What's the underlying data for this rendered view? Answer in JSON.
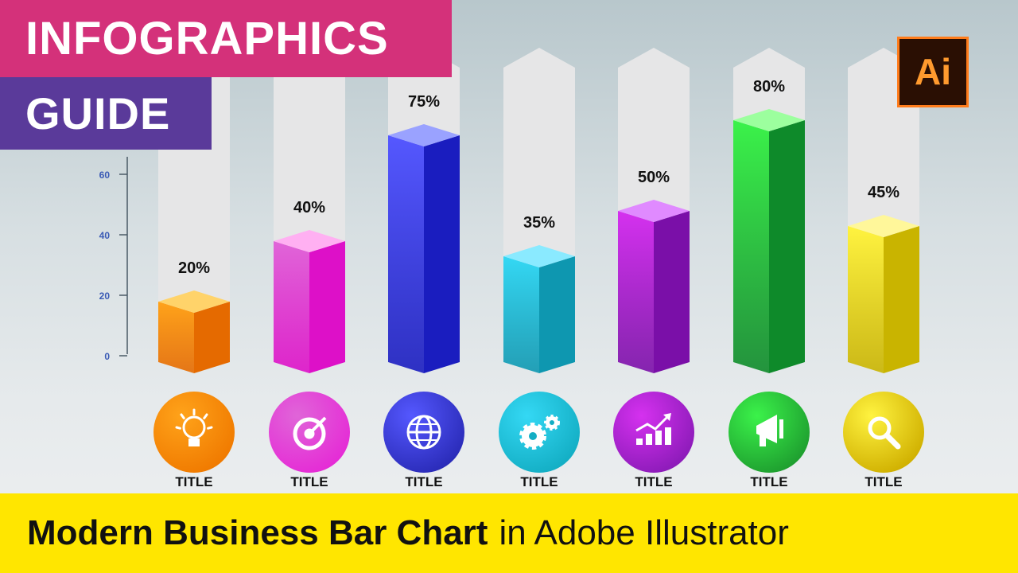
{
  "banner": {
    "line1": "INFOGRAPHICS",
    "line2": "GUIDE",
    "app_badge": "Ai"
  },
  "bottom_title": {
    "bold": "Modern Business Bar Chart",
    "rest": "in Adobe Illustrator"
  },
  "chart_data": {
    "type": "bar",
    "title": "",
    "xlabel": "",
    "ylabel": "",
    "categories": [
      "TITLE",
      "TITLE",
      "TITLE",
      "TITLE",
      "TITLE",
      "TITLE",
      "TITLE"
    ],
    "values": [
      20,
      40,
      75,
      35,
      50,
      80,
      45
    ],
    "value_labels": [
      "20%",
      "40%",
      "75%",
      "35%",
      "50%",
      "80%",
      "45%"
    ],
    "y_ticks": [
      0,
      20,
      40,
      60
    ],
    "ylim": [
      0,
      60
    ],
    "grid": false,
    "legend": "none",
    "icons": [
      "lightbulb-icon",
      "target-icon",
      "globe-icon",
      "gears-icon",
      "growth-chart-icon",
      "megaphone-icon",
      "magnifier-icon"
    ],
    "colors": [
      {
        "front": "#ffa31a",
        "side": "#e56a00",
        "top": "#ffd36a",
        "circle": "#f07a00"
      },
      {
        "front": "#e065d8",
        "side": "#dd10c8",
        "top": "#ffb0f2",
        "circle": "#e52bd6"
      },
      {
        "front": "#5558ff",
        "side": "#1a1dbf",
        "top": "#9aa2ff",
        "circle": "#2a2bb8"
      },
      {
        "front": "#34d8f4",
        "side": "#0e97b0",
        "top": "#8aeaff",
        "circle": "#13aec4"
      },
      {
        "front": "#d531ef",
        "side": "#7a0fa8",
        "top": "#e08aff",
        "circle": "#8c1bb9"
      },
      {
        "front": "#3bf24a",
        "side": "#0e8a2a",
        "top": "#9cff9e",
        "circle": "#1e9e2f"
      },
      {
        "front": "#fff340",
        "side": "#c9b400",
        "top": "#fff79a",
        "circle": "#d0b000"
      }
    ]
  }
}
